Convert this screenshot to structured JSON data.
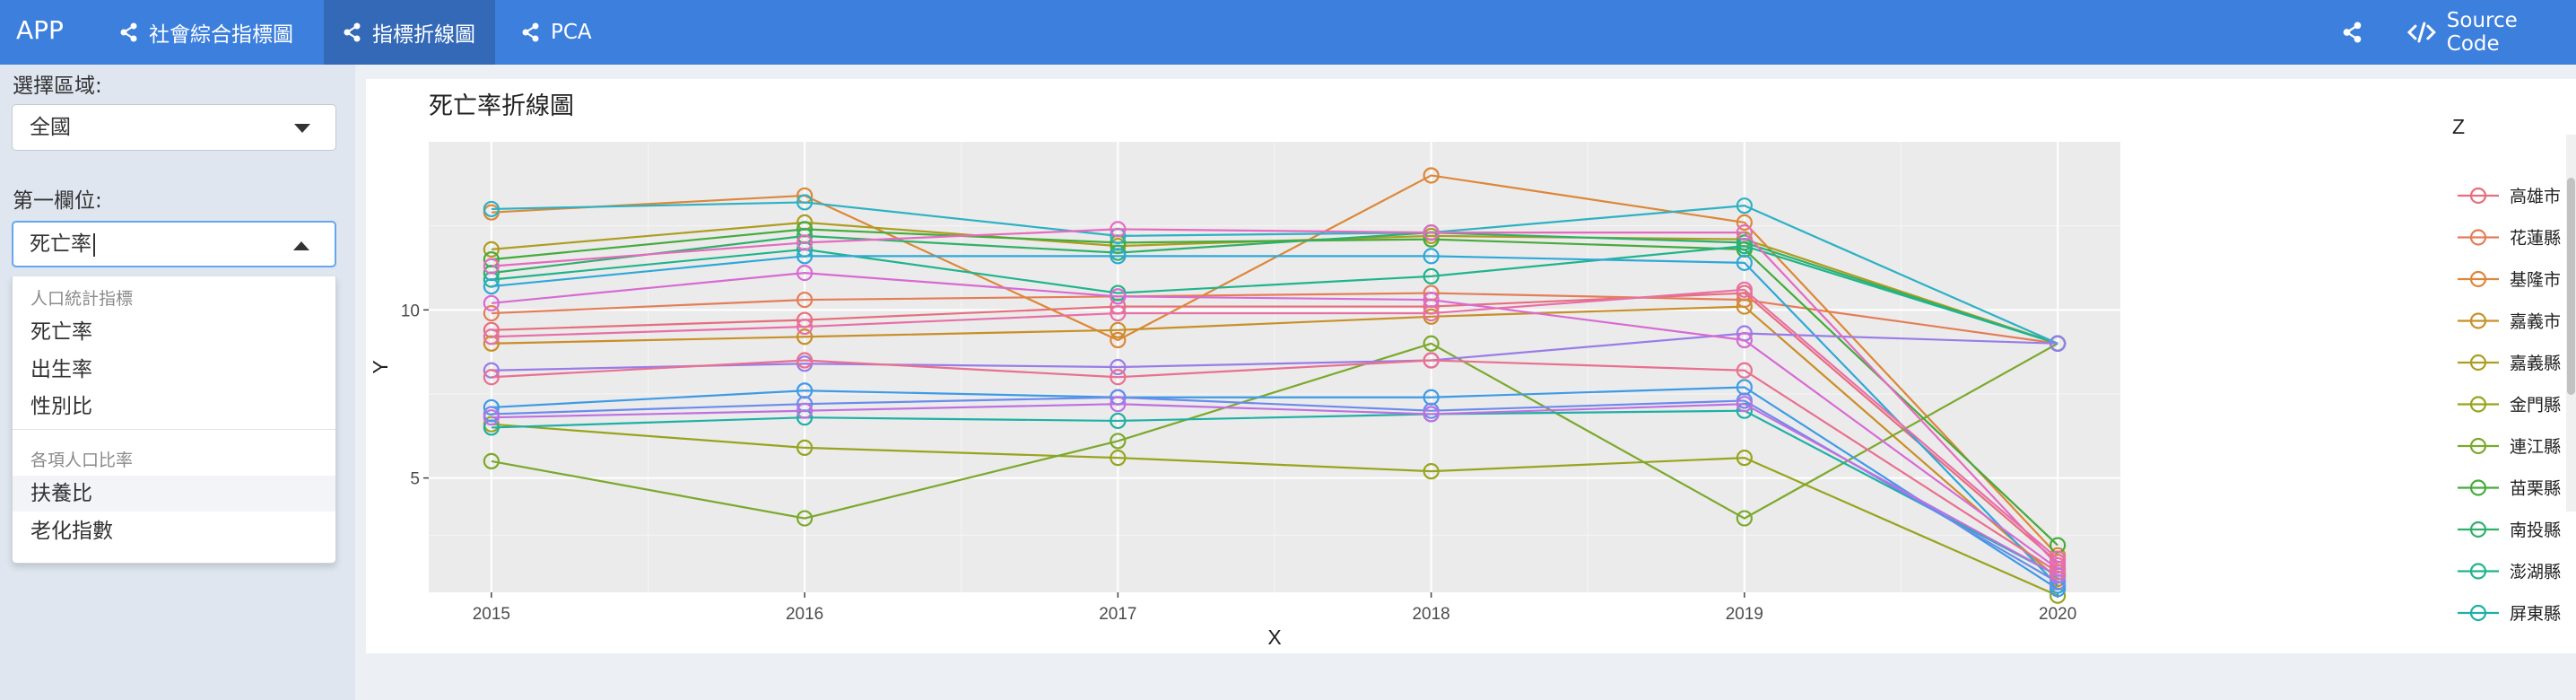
{
  "app": {
    "brand": "APP"
  },
  "nav": {
    "tabs": [
      {
        "label": "社會綜合指標圖",
        "active": false
      },
      {
        "label": "指標折線圖",
        "active": true
      },
      {
        "label": "PCA",
        "active": false
      }
    ],
    "source_code": "Source Code"
  },
  "sidebar": {
    "region_label": "選擇區域:",
    "region_value": "全國",
    "field1_label": "第一欄位:",
    "field1_value": "死亡率",
    "dropdown": {
      "groups": [
        {
          "label": "人口統計指標",
          "options": [
            "死亡率",
            "出生率",
            "性別比"
          ]
        },
        {
          "label": "各項人口比率",
          "options": [
            "扶養比",
            "老化指數"
          ]
        }
      ],
      "highlighted": "扶養比"
    }
  },
  "chart_data": {
    "type": "line",
    "title": "死亡率折線圖",
    "xlabel": "X",
    "ylabel": "Y",
    "legend_title": "Z",
    "legend_position": "right",
    "x": [
      2015,
      2016,
      2017,
      2018,
      2019,
      2020
    ],
    "xlim": [
      2014.8,
      2020.2
    ],
    "ylim": [
      1.6,
      15.0
    ],
    "yticks": [
      5,
      10
    ],
    "grid": true,
    "marker": "open-circle",
    "series": [
      {
        "name": "高雄市",
        "color": "#e76e7c",
        "values": [
          9.4,
          9.7,
          10.1,
          10.1,
          10.5,
          2.5
        ]
      },
      {
        "name": "花蓮縣",
        "color": "#e47d58",
        "values": [
          9.9,
          10.3,
          10.4,
          10.5,
          10.3,
          9.0
        ]
      },
      {
        "name": "基隆市",
        "color": "#dd8738",
        "values": [
          12.9,
          13.4,
          9.1,
          14.0,
          12.6,
          2.7
        ]
      },
      {
        "name": "嘉義市",
        "color": "#c98f28",
        "values": [
          9.0,
          9.2,
          9.4,
          9.8,
          10.1,
          2.0
        ]
      },
      {
        "name": "嘉義縣",
        "color": "#ad9d22",
        "values": [
          11.8,
          12.6,
          11.9,
          12.2,
          12.1,
          9.0
        ]
      },
      {
        "name": "金門縣",
        "color": "#98a41e",
        "values": [
          6.6,
          5.9,
          5.6,
          5.2,
          5.6,
          1.5
        ]
      },
      {
        "name": "連江縣",
        "color": "#7ba92c",
        "values": [
          5.5,
          3.8,
          6.1,
          9.0,
          3.8,
          9.0
        ]
      },
      {
        "name": "苗栗縣",
        "color": "#46ab3c",
        "values": [
          11.5,
          12.4,
          12.0,
          12.1,
          11.8,
          3.0
        ]
      },
      {
        "name": "南投縣",
        "color": "#2fb06a",
        "values": [
          11.1,
          12.2,
          11.7,
          12.3,
          12.0,
          9.0
        ]
      },
      {
        "name": "澎湖縣",
        "color": "#20b48c",
        "values": [
          10.9,
          11.8,
          10.5,
          11.0,
          11.9,
          9.0
        ]
      },
      {
        "name": "屏東縣",
        "color": "#1fb0a5",
        "values": [
          6.5,
          6.8,
          6.7,
          6.9,
          7.0,
          2.1
        ]
      },
      {
        "name": "",
        "color": "#2db1c4",
        "values": [
          13.0,
          13.2,
          12.2,
          12.3,
          13.1,
          9.0
        ]
      },
      {
        "name": "",
        "color": "#2ea8d8",
        "values": [
          10.7,
          11.6,
          11.6,
          11.6,
          11.4,
          1.8
        ]
      },
      {
        "name": "",
        "color": "#3e9be6",
        "values": [
          7.1,
          7.6,
          7.4,
          7.4,
          7.7,
          1.7
        ]
      },
      {
        "name": "",
        "color": "#6b8bed",
        "values": [
          6.9,
          7.2,
          7.4,
          7.0,
          7.3,
          1.9
        ]
      },
      {
        "name": "",
        "color": "#9a7ce8",
        "values": [
          8.2,
          8.4,
          8.3,
          8.5,
          9.3,
          9.0
        ]
      },
      {
        "name": "",
        "color": "#bf70e0",
        "values": [
          6.8,
          7.0,
          7.2,
          6.9,
          7.2,
          2.1
        ]
      },
      {
        "name": "",
        "color": "#d86ad3",
        "values": [
          10.2,
          11.1,
          10.4,
          10.3,
          9.1,
          2.3
        ]
      },
      {
        "name": "",
        "color": "#e46bc0",
        "values": [
          11.3,
          12.0,
          12.4,
          12.3,
          12.3,
          2.4
        ]
      },
      {
        "name": "",
        "color": "#e86fa6",
        "values": [
          9.2,
          9.5,
          9.9,
          9.9,
          10.6,
          2.6
        ]
      },
      {
        "name": "",
        "color": "#e97090",
        "values": [
          8.0,
          8.5,
          8.0,
          8.5,
          8.2,
          2.2
        ]
      }
    ]
  }
}
